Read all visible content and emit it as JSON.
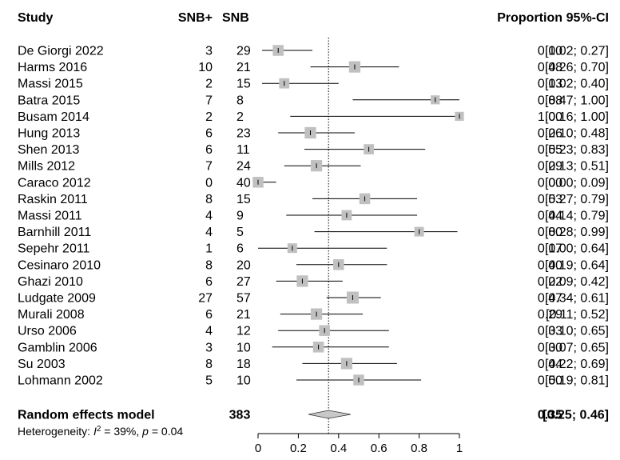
{
  "chart_data": {
    "type": "forest",
    "headers": {
      "study": "Study",
      "events": "SNB+",
      "total": "SNB",
      "proportion": "Proportion",
      "ci": "95%-CI"
    },
    "studies": [
      {
        "study": "De Giorgi 2022",
        "events": "3",
        "total": "29",
        "proportion": 0.1,
        "lower": 0.02,
        "upper": 0.27,
        "proportion_label": "0.10",
        "ci_label": "[0.02; 0.27]",
        "weight": 0.9
      },
      {
        "study": "Harms 2016",
        "events": "10",
        "total": "21",
        "proportion": 0.48,
        "lower": 0.26,
        "upper": 0.7,
        "proportion_label": "0.48",
        "ci_label": "[0.26; 0.70]",
        "weight": 0.95
      },
      {
        "study": "Massi 2015",
        "events": "2",
        "total": "15",
        "proportion": 0.13,
        "lower": 0.02,
        "upper": 0.4,
        "proportion_label": "0.13",
        "ci_label": "[0.02; 0.40]",
        "weight": 0.85
      },
      {
        "study": "Batra 2015",
        "events": "7",
        "total": "8",
        "proportion": 0.88,
        "lower": 0.47,
        "upper": 1.0,
        "proportion_label": "0.88",
        "ci_label": "[0.47; 1.00]",
        "weight": 0.75
      },
      {
        "study": "Busam 2014",
        "events": "2",
        "total": "2",
        "proportion": 1.0,
        "lower": 0.16,
        "upper": 1.0,
        "proportion_label": "1.00",
        "ci_label": "[0.16; 1.00]",
        "weight": 0.75
      },
      {
        "study": "Hung 2013",
        "events": "6",
        "total": "23",
        "proportion": 0.26,
        "lower": 0.1,
        "upper": 0.48,
        "proportion_label": "0.26",
        "ci_label": "[0.10; 0.48]",
        "weight": 0.95
      },
      {
        "study": "Shen 2013",
        "events": "6",
        "total": "11",
        "proportion": 0.55,
        "lower": 0.23,
        "upper": 0.83,
        "proportion_label": "0.55",
        "ci_label": "[0.23; 0.83]",
        "weight": 0.85
      },
      {
        "study": "Mills 2012",
        "events": "7",
        "total": "24",
        "proportion": 0.29,
        "lower": 0.13,
        "upper": 0.51,
        "proportion_label": "0.29",
        "ci_label": "[0.13; 0.51]",
        "weight": 0.95
      },
      {
        "study": "Caraco 2012",
        "events": "0",
        "total": "40",
        "proportion": 0.0,
        "lower": 0.0,
        "upper": 0.09,
        "proportion_label": "0.00",
        "ci_label": "[0.00; 0.09]",
        "weight": 0.9
      },
      {
        "study": "Raskin 2011",
        "events": "8",
        "total": "15",
        "proportion": 0.53,
        "lower": 0.27,
        "upper": 0.79,
        "proportion_label": "0.53",
        "ci_label": "[0.27; 0.79]",
        "weight": 0.9
      },
      {
        "study": "Massi 2011",
        "events": "4",
        "total": "9",
        "proportion": 0.44,
        "lower": 0.14,
        "upper": 0.79,
        "proportion_label": "0.44",
        "ci_label": "[0.14; 0.79]",
        "weight": 0.85
      },
      {
        "study": "Barnhill 2011",
        "events": "4",
        "total": "5",
        "proportion": 0.8,
        "lower": 0.28,
        "upper": 0.99,
        "proportion_label": "0.80",
        "ci_label": "[0.28; 0.99]",
        "weight": 0.8
      },
      {
        "study": "Sepehr 2011",
        "events": "1",
        "total": "6",
        "proportion": 0.17,
        "lower": 0.0,
        "upper": 0.64,
        "proportion_label": "0.17",
        "ci_label": "[0.00; 0.64]",
        "weight": 0.8
      },
      {
        "study": "Cesinaro 2010",
        "events": "8",
        "total": "20",
        "proportion": 0.4,
        "lower": 0.19,
        "upper": 0.64,
        "proportion_label": "0.40",
        "ci_label": "[0.19; 0.64]",
        "weight": 0.9
      },
      {
        "study": "Ghazi 2010",
        "events": "6",
        "total": "27",
        "proportion": 0.22,
        "lower": 0.09,
        "upper": 0.42,
        "proportion_label": "0.22",
        "ci_label": "[0.09; 0.42]",
        "weight": 0.95
      },
      {
        "study": "Ludgate 2009",
        "events": "27",
        "total": "57",
        "proportion": 0.47,
        "lower": 0.34,
        "upper": 0.61,
        "proportion_label": "0.47",
        "ci_label": "[0.34; 0.61]",
        "weight": 1.0
      },
      {
        "study": "Murali 2008",
        "events": "6",
        "total": "21",
        "proportion": 0.29,
        "lower": 0.11,
        "upper": 0.52,
        "proportion_label": "0.29",
        "ci_label": "[0.11; 0.52]",
        "weight": 0.95
      },
      {
        "study": "Urso 2006",
        "events": "4",
        "total": "12",
        "proportion": 0.33,
        "lower": 0.1,
        "upper": 0.65,
        "proportion_label": "0.33",
        "ci_label": "[0.10; 0.65]",
        "weight": 0.9
      },
      {
        "study": "Gamblin 2006",
        "events": "3",
        "total": "10",
        "proportion": 0.3,
        "lower": 0.07,
        "upper": 0.65,
        "proportion_label": "0.30",
        "ci_label": "[0.07; 0.65]",
        "weight": 0.9
      },
      {
        "study": "Su 2003",
        "events": "8",
        "total": "18",
        "proportion": 0.44,
        "lower": 0.22,
        "upper": 0.69,
        "proportion_label": "0.44",
        "ci_label": "[0.22; 0.69]",
        "weight": 0.95
      },
      {
        "study": "Lohmann 2002",
        "events": "5",
        "total": "10",
        "proportion": 0.5,
        "lower": 0.19,
        "upper": 0.81,
        "proportion_label": "0.50",
        "ci_label": "[0.19; 0.81]",
        "weight": 0.9
      }
    ],
    "pooled": {
      "label": "Random effects model",
      "total": "383",
      "proportion": 0.35,
      "lower": 0.25,
      "upper": 0.46,
      "proportion_label": "0.35",
      "ci_label": "[0.25; 0.46]"
    },
    "heterogeneity": {
      "prefix": "Heterogeneity: ",
      "symbol": "I",
      "exponent": "2",
      "value": " = 39%, ",
      "p_symbol": "p",
      "p_value": " = 0.04"
    },
    "xlim": [
      0,
      1
    ],
    "xticks": [
      0,
      0.2,
      0.4,
      0.6,
      0.8,
      1
    ],
    "xtick_labels": [
      "0",
      "0.2",
      "0.4",
      "0.6",
      "0.8",
      "1"
    ],
    "reference_line": 0.35,
    "colors": {
      "square": "#c0c0c0",
      "line": "#000000",
      "diamond": "#c8c8c8"
    }
  }
}
